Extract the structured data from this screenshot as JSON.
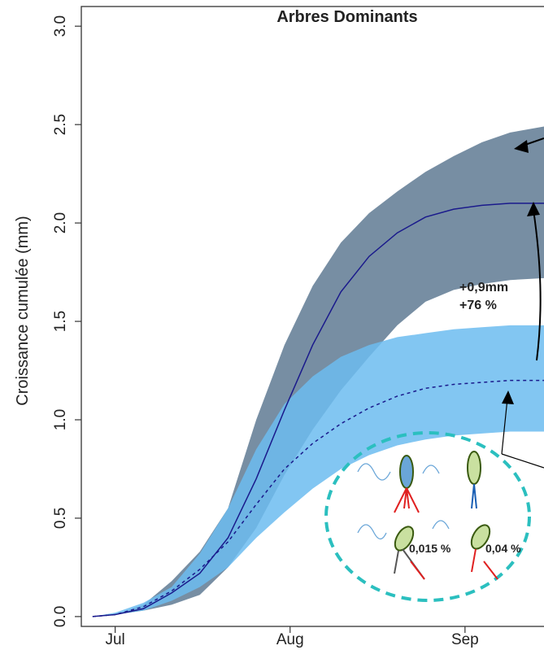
{
  "chart_data": {
    "type": "line",
    "title": "Arbres Dominants",
    "ylabel": "Croissance cumulée (mm)",
    "x": [
      -4,
      0,
      5,
      10,
      15,
      20,
      25,
      30,
      35,
      40,
      45,
      50,
      55,
      60,
      65,
      70,
      76
    ],
    "xlim": [
      -6,
      76
    ],
    "xticks": [
      {
        "value": 0,
        "label": "Jul"
      },
      {
        "value": 31,
        "label": "Aug"
      },
      {
        "value": 62,
        "label": "Sep"
      }
    ],
    "ylim": [
      -0.05,
      3.1
    ],
    "yticks": [
      {
        "value": 0,
        "label": "0.0"
      },
      0.5,
      {
        "value": 1,
        "label": "1.0"
      },
      1.5,
      {
        "value": 2,
        "label": "2.0"
      },
      2.5,
      {
        "value": 3,
        "label": "3.0"
      }
    ],
    "series": [
      {
        "color": "#1a1a8c",
        "band_color": "#5f7a93",
        "dashed": false,
        "values": [
          0,
          0.01,
          0.04,
          0.12,
          0.22,
          0.4,
          0.7,
          1.05,
          1.38,
          1.65,
          1.83,
          1.95,
          2.03,
          2.07,
          2.09,
          2.1,
          2.1
        ],
        "upper": [
          0,
          0.01,
          0.06,
          0.18,
          0.33,
          0.55,
          1.0,
          1.38,
          1.68,
          1.9,
          2.05,
          2.16,
          2.26,
          2.34,
          2.41,
          2.46,
          2.49
        ],
        "lower": [
          0,
          0.01,
          0.03,
          0.06,
          0.11,
          0.25,
          0.45,
          0.72,
          0.95,
          1.15,
          1.32,
          1.48,
          1.6,
          1.66,
          1.69,
          1.71,
          1.72
        ]
      },
      {
        "color": "#1a1a8c",
        "band_color": "#6cbcf0",
        "dashed": true,
        "values": [
          0,
          0.01,
          0.05,
          0.13,
          0.24,
          0.38,
          0.57,
          0.75,
          0.88,
          0.98,
          1.06,
          1.12,
          1.16,
          1.18,
          1.19,
          1.2,
          1.2
        ],
        "upper": [
          0,
          0.02,
          0.07,
          0.15,
          0.32,
          0.55,
          0.85,
          1.08,
          1.22,
          1.32,
          1.38,
          1.42,
          1.44,
          1.46,
          1.47,
          1.48,
          1.48
        ],
        "lower": [
          0,
          0.01,
          0.03,
          0.08,
          0.15,
          0.25,
          0.4,
          0.53,
          0.65,
          0.75,
          0.82,
          0.87,
          0.9,
          0.92,
          0.93,
          0.94,
          0.94
        ]
      }
    ],
    "annotations": {
      "gain_mm": "+0,9mm",
      "gain_pct": "+76 %",
      "left_pct": "0,015 %",
      "right_pct": "0,04 %"
    }
  }
}
